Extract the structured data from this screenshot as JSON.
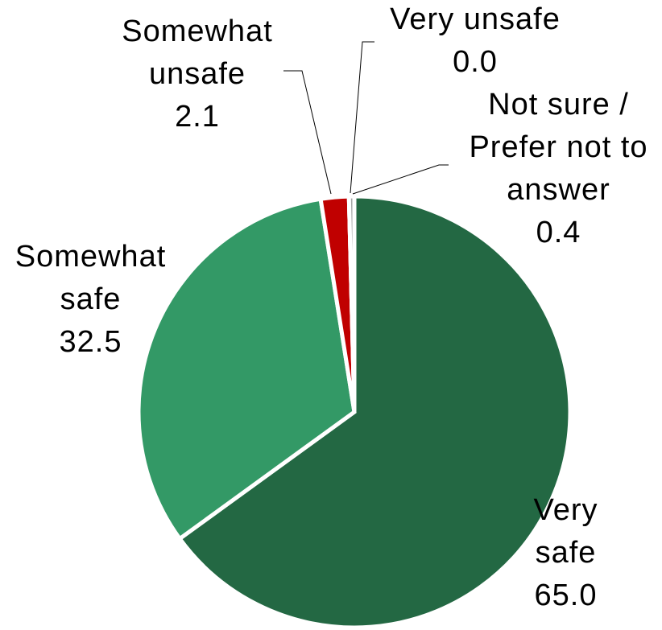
{
  "chart_data": {
    "type": "pie",
    "categories": [
      "Very safe",
      "Somewhat safe",
      "Somewhat unsafe",
      "Very unsafe",
      "Not sure / Prefer not to answer"
    ],
    "values": [
      65.0,
      32.5,
      2.1,
      0.0,
      0.4
    ],
    "value_labels": [
      "65.0",
      "32.5",
      "2.1",
      "0.0",
      "0.4"
    ],
    "colors": [
      "#236843",
      "#339966",
      "#c00000",
      "#7f7f7f",
      "#a6a6a6"
    ]
  }
}
